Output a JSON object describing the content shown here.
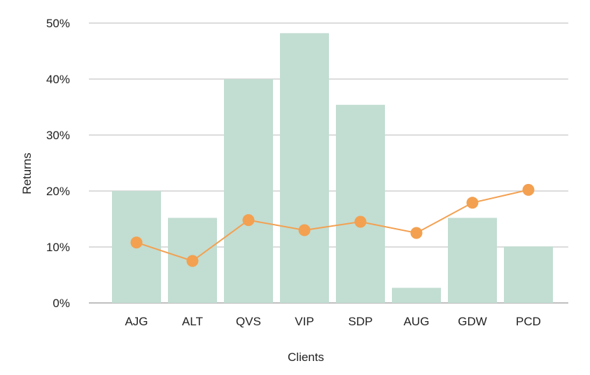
{
  "chart_data": {
    "type": "bar",
    "categories": [
      "AJG",
      "ALT",
      "QVS",
      "VIP",
      "SDP",
      "AUG",
      "GDW",
      "PCD"
    ],
    "series": [
      {
        "type": "bar",
        "values": [
          20,
          15.2,
          40,
          48.2,
          35.4,
          2.7,
          15.2,
          10.1
        ],
        "color": "#c2ddd2"
      },
      {
        "type": "line",
        "values": [
          10.8,
          7.5,
          14.8,
          13.0,
          14.5,
          12.5,
          17.9,
          20.2
        ],
        "color": "#f3a050"
      }
    ],
    "yticks": [
      "0%",
      "10%",
      "20%",
      "30%",
      "40%",
      "50%"
    ],
    "xlabel": "Clients",
    "ylabel": "Returns",
    "ylim": [
      0,
      50
    ],
    "grid": true,
    "legend": "none",
    "colors": {
      "grid": "#c8c8c8",
      "axis": "#999999",
      "text": "#222222"
    }
  }
}
